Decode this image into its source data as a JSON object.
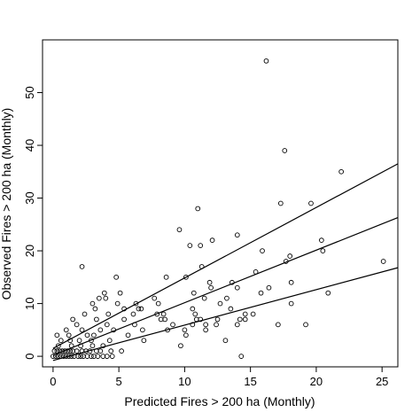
{
  "chart_data": {
    "type": "scatter",
    "title": "",
    "xlabel": "Predicted Fires > 200 ha (Monthly)",
    "ylabel": "Observed Fires > 200 ha (Monthly)",
    "xlim": [
      -0.8,
      26.2
    ],
    "ylim": [
      -2,
      60
    ],
    "x_ticks": [
      0,
      5,
      10,
      15,
      20,
      25
    ],
    "x_tick_labels": [
      "0",
      "5",
      "10",
      "15",
      "20",
      "25"
    ],
    "y_ticks": [
      0,
      10,
      20,
      30,
      40,
      50
    ],
    "y_tick_labels": [
      "0",
      "10",
      "20",
      "30",
      "40",
      "50"
    ],
    "grid": false,
    "legend": "none",
    "marker_color": "#000000",
    "lines": [
      {
        "x": [
          0,
          26.2
        ],
        "y": [
          1.5,
          36.5
        ]
      },
      {
        "x": [
          0,
          26.2
        ],
        "y": [
          0.2,
          26.3
        ]
      },
      {
        "x": [
          0,
          26.2
        ],
        "y": [
          -0.8,
          16.8
        ]
      }
    ],
    "points": [
      [
        16.2,
        56.0
      ],
      [
        17.6,
        39.0
      ],
      [
        21.9,
        35.0
      ],
      [
        19.6,
        29.0
      ],
      [
        17.3,
        29.0
      ],
      [
        11.0,
        28.0
      ],
      [
        9.6,
        24.0
      ],
      [
        14.0,
        23.0
      ],
      [
        20.4,
        22.0
      ],
      [
        12.1,
        22.0
      ],
      [
        10.4,
        21.0
      ],
      [
        11.2,
        21.0
      ],
      [
        15.9,
        20.0
      ],
      [
        20.5,
        20.0
      ],
      [
        18.0,
        19.0
      ],
      [
        17.7,
        18.0
      ],
      [
        25.1,
        18.0
      ],
      [
        2.2,
        17.0
      ],
      [
        11.3,
        17.0
      ],
      [
        15.4,
        16.0
      ],
      [
        13.6,
        14.0
      ],
      [
        16.4,
        13.0
      ],
      [
        18.1,
        14.0
      ],
      [
        4.8,
        15.0
      ],
      [
        8.6,
        15.0
      ],
      [
        10.1,
        15.0
      ],
      [
        11.9,
        14.0
      ],
      [
        12.0,
        13.0
      ],
      [
        14.0,
        13.0
      ],
      [
        15.8,
        12.0
      ],
      [
        3.9,
        12.0
      ],
      [
        5.1,
        12.0
      ],
      [
        10.7,
        12.0
      ],
      [
        20.9,
        12.0
      ],
      [
        3.5,
        11.0
      ],
      [
        4.0,
        11.0
      ],
      [
        7.7,
        11.0
      ],
      [
        11.5,
        11.0
      ],
      [
        13.2,
        11.0
      ],
      [
        3.0,
        10.0
      ],
      [
        4.9,
        10.0
      ],
      [
        6.3,
        10.0
      ],
      [
        8.0,
        10.0
      ],
      [
        12.7,
        10.0
      ],
      [
        18.1,
        10.0
      ],
      [
        3.2,
        9.0
      ],
      [
        5.4,
        9.0
      ],
      [
        6.5,
        9.0
      ],
      [
        6.7,
        9.0
      ],
      [
        10.6,
        9.0
      ],
      [
        13.5,
        9.0
      ],
      [
        2.4,
        8.0
      ],
      [
        4.2,
        8.0
      ],
      [
        6.1,
        8.0
      ],
      [
        7.9,
        8.0
      ],
      [
        8.4,
        8.0
      ],
      [
        10.8,
        8.0
      ],
      [
        14.6,
        8.0
      ],
      [
        15.2,
        8.0
      ],
      [
        1.5,
        7.0
      ],
      [
        3.3,
        7.0
      ],
      [
        5.4,
        7.0
      ],
      [
        8.2,
        7.0
      ],
      [
        8.5,
        7.0
      ],
      [
        10.9,
        7.0
      ],
      [
        11.2,
        7.0
      ],
      [
        12.5,
        7.0
      ],
      [
        14.2,
        7.0
      ],
      [
        14.6,
        7.0
      ],
      [
        1.8,
        6.0
      ],
      [
        4.1,
        6.0
      ],
      [
        6.2,
        6.0
      ],
      [
        9.1,
        6.0
      ],
      [
        10.6,
        6.0
      ],
      [
        11.6,
        6.0
      ],
      [
        12.4,
        6.0
      ],
      [
        14.0,
        6.0
      ],
      [
        17.1,
        6.0
      ],
      [
        19.2,
        6.0
      ],
      [
        1.0,
        5.0
      ],
      [
        2.2,
        5.0
      ],
      [
        3.6,
        5.0
      ],
      [
        4.6,
        5.0
      ],
      [
        6.8,
        5.0
      ],
      [
        8.7,
        5.0
      ],
      [
        10.0,
        5.0
      ],
      [
        11.6,
        5.0
      ],
      [
        1.2,
        4.0
      ],
      [
        2.6,
        4.0
      ],
      [
        3.1,
        4.0
      ],
      [
        5.7,
        4.0
      ],
      [
        10.1,
        4.0
      ],
      [
        0.3,
        4.0
      ],
      [
        0.6,
        3.0
      ],
      [
        1.3,
        3.0
      ],
      [
        2.0,
        3.0
      ],
      [
        2.9,
        3.0
      ],
      [
        4.3,
        3.0
      ],
      [
        6.9,
        3.0
      ],
      [
        13.1,
        3.0
      ],
      [
        0.4,
        2.0
      ],
      [
        1.4,
        2.0
      ],
      [
        2.1,
        2.0
      ],
      [
        3.0,
        2.0
      ],
      [
        3.8,
        2.0
      ],
      [
        9.7,
        2.0
      ],
      [
        0.1,
        1.0
      ],
      [
        0.3,
        1.0
      ],
      [
        0.5,
        1.0
      ],
      [
        0.7,
        1.0
      ],
      [
        0.9,
        1.0
      ],
      [
        1.1,
        1.0
      ],
      [
        1.3,
        1.0
      ],
      [
        1.5,
        1.0
      ],
      [
        1.8,
        1.0
      ],
      [
        2.2,
        1.0
      ],
      [
        2.5,
        1.0
      ],
      [
        2.8,
        1.0
      ],
      [
        3.3,
        1.0
      ],
      [
        3.6,
        1.0
      ],
      [
        4.4,
        1.0
      ],
      [
        5.2,
        1.0
      ],
      [
        0.0,
        0.0
      ],
      [
        0.2,
        0.0
      ],
      [
        0.4,
        0.0
      ],
      [
        0.6,
        0.0
      ],
      [
        0.8,
        0.0
      ],
      [
        1.0,
        0.0
      ],
      [
        1.2,
        0.0
      ],
      [
        1.4,
        0.0
      ],
      [
        1.6,
        0.0
      ],
      [
        1.9,
        0.0
      ],
      [
        2.1,
        0.0
      ],
      [
        2.3,
        0.0
      ],
      [
        2.6,
        0.0
      ],
      [
        2.9,
        0.0
      ],
      [
        3.1,
        0.0
      ],
      [
        3.4,
        0.0
      ],
      [
        3.8,
        0.0
      ],
      [
        4.1,
        0.0
      ],
      [
        4.5,
        0.0
      ],
      [
        14.3,
        0.0
      ]
    ]
  }
}
